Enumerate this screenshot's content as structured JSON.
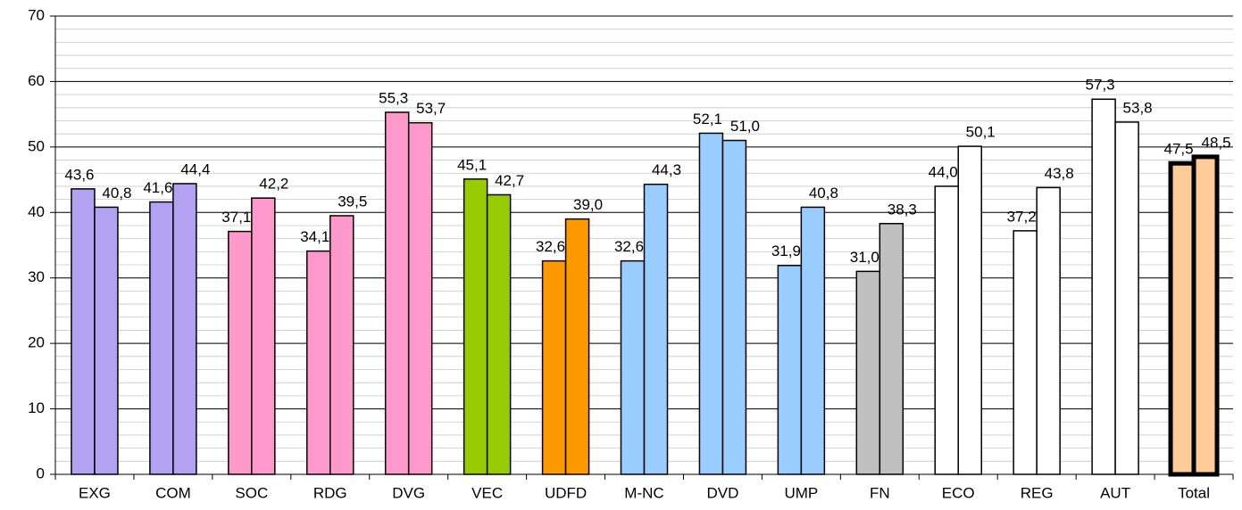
{
  "chart_data": {
    "type": "bar",
    "categories": [
      "EXG",
      "COM",
      "SOC",
      "RDG",
      "DVG",
      "VEC",
      "UDFD",
      "M-NC",
      "DVD",
      "UMP",
      "FN",
      "ECO",
      "REG",
      "AUT",
      "Total"
    ],
    "colors": [
      "#b3a2f2",
      "#b3a2f2",
      "#ff99cc",
      "#ff99cc",
      "#ff99cc",
      "#99cc00",
      "#ff9900",
      "#99ccff",
      "#99ccff",
      "#99ccff",
      "#c0c0c0",
      "#ffffff",
      "#ffffff",
      "#ffffff",
      "#ffcc99"
    ],
    "edge_widths": [
      1.5,
      1.5,
      1.5,
      1.5,
      1.5,
      1.5,
      1.5,
      1.5,
      1.5,
      1.5,
      1.5,
      1.5,
      1.5,
      1.5,
      5
    ],
    "series": [
      {
        "values": [
          43.6,
          41.6,
          37.1,
          34.1,
          55.3,
          45.1,
          32.6,
          32.6,
          52.1,
          31.9,
          31.0,
          44.0,
          37.2,
          57.3,
          47.5
        ],
        "value_labels": [
          "43,6",
          "41,6",
          "37,1",
          "34,1",
          "55,3",
          "45,1",
          "32,6",
          "32,6",
          "52,1",
          "31,9",
          "31,0",
          "44,0",
          "37,2",
          "57,3",
          "47,5"
        ]
      },
      {
        "values": [
          40.8,
          44.4,
          42.2,
          39.5,
          53.7,
          42.7,
          39.0,
          44.3,
          51.0,
          40.8,
          38.3,
          50.1,
          43.8,
          53.8,
          48.5
        ],
        "value_labels": [
          "40,8",
          "44,4",
          "42,2",
          "39,5",
          "53,7",
          "42,7",
          "39,0",
          "44,3",
          "51,0",
          "40,8",
          "38,3",
          "50,1",
          "43,8",
          "53,8",
          "48,5"
        ]
      }
    ],
    "ylim": [
      0,
      70
    ],
    "yticks": [
      0,
      10,
      20,
      30,
      40,
      50,
      60,
      70
    ],
    "grid": true,
    "minor_grid_step": 2
  }
}
